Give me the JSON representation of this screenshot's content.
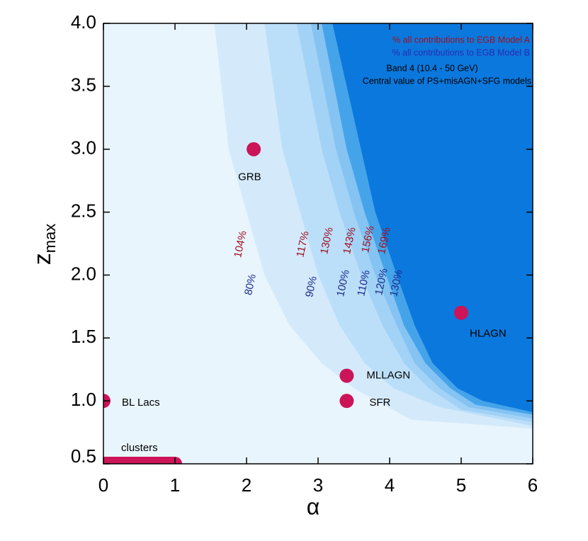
{
  "chart_data": {
    "type": "contour",
    "xlabel": "α",
    "ylabel": {
      "main": "z",
      "sub": "max"
    },
    "xlim": [
      0,
      6
    ],
    "ylim": [
      0.5,
      4.0
    ],
    "xticks": [
      0,
      1,
      2,
      3,
      4,
      5,
      6
    ],
    "yticks": [
      0.5,
      {
        "value": 1.0,
        "label": "1.0"
      },
      1.5,
      {
        "value": 2.0,
        "label": "2.0"
      },
      2.5,
      {
        "value": 3.0,
        "label": "3.0"
      },
      3.5,
      {
        "value": 4.0,
        "label": "4.0"
      }
    ],
    "background": "#e9f5fd",
    "legend": [
      {
        "text": "% all contributions to EGB Model A",
        "color": "#a0101e"
      },
      {
        "text": "% all contributions to EGB Model B",
        "color": "#2a2ab0"
      },
      {
        "text": "Band 4 (10.4 - 50 GeV)",
        "color": "#000000"
      },
      {
        "text": "Central value of PS+misAGN+SFG models",
        "color": "#000000"
      }
    ],
    "label_colors": {
      "a": "#a0101e",
      "b": "#1c2a8c"
    },
    "contours": [
      {
        "label_a": "104%",
        "label_b": "80%",
        "color": "#d4eafb",
        "x": [
          1.55,
          1.75,
          2.0,
          2.25,
          2.6,
          3.05,
          3.5,
          4.3,
          6.0
        ],
        "y": [
          4.0,
          3.0,
          2.5,
          2.0,
          1.6,
          1.3,
          1.1,
          0.85,
          0.78
        ]
      },
      {
        "label_a": "117%",
        "label_b": "90%",
        "color": "#bcdff9",
        "x": [
          2.25,
          2.5,
          2.75,
          3.0,
          3.3,
          3.65,
          4.05,
          4.7,
          6.0
        ],
        "y": [
          4.0,
          3.0,
          2.5,
          2.0,
          1.6,
          1.3,
          1.1,
          0.95,
          0.8
        ]
      },
      {
        "label_a": "130%",
        "label_b": "100%",
        "color": "#a2d2f6",
        "x": [
          2.7,
          3.05,
          3.3,
          3.6,
          3.9,
          4.2,
          4.55,
          5.0,
          6.0
        ],
        "y": [
          4.0,
          3.0,
          2.5,
          2.0,
          1.6,
          1.3,
          1.1,
          0.93,
          0.83
        ]
      },
      {
        "label_a": "143%",
        "label_b": "110%",
        "color": "#84c3f2",
        "x": [
          2.9,
          3.25,
          3.5,
          3.8,
          4.1,
          4.35,
          4.7,
          5.1,
          6.0
        ],
        "y": [
          4.0,
          3.0,
          2.5,
          2.0,
          1.6,
          1.3,
          1.1,
          0.95,
          0.86
        ]
      },
      {
        "label_a": "156%",
        "label_b": "120%",
        "color": "#45a3ea",
        "x": [
          3.05,
          3.4,
          3.65,
          3.95,
          4.2,
          4.5,
          4.85,
          5.2,
          6.0
        ],
        "y": [
          4.0,
          3.0,
          2.5,
          2.0,
          1.6,
          1.3,
          1.1,
          0.97,
          0.89
        ]
      },
      {
        "label_a": "169%",
        "label_b": "130%",
        "color": "#0b78dd",
        "x": [
          3.2,
          3.6,
          3.8,
          4.1,
          4.35,
          4.6,
          4.95,
          5.3,
          6.0
        ],
        "y": [
          4.0,
          3.0,
          2.5,
          2.0,
          1.6,
          1.3,
          1.1,
          1.0,
          0.91
        ]
      }
    ],
    "point_color": "#cc1458",
    "points": [
      {
        "name": "GRB",
        "x": 2.1,
        "y": 3.0
      },
      {
        "name": "HLAGN",
        "x": 5.0,
        "y": 1.7
      },
      {
        "name": "MLLAGN",
        "x": 3.4,
        "y": 1.2
      },
      {
        "name": "SFR",
        "x": 3.4,
        "y": 1.0
      },
      {
        "name": "BL Lacs",
        "x": 0,
        "y": 1.0
      }
    ],
    "segment": {
      "name": "clusters",
      "x": [
        0,
        1
      ],
      "y": 0.5
    }
  }
}
